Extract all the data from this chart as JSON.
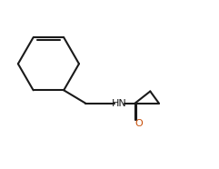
{
  "bg_color": "#ffffff",
  "bond_color": "#1a1a1a",
  "hn_color": "#1a1a1a",
  "o_color": "#c8500a",
  "line_width": 1.5,
  "font_size_hn": 8,
  "font_size_o": 8,
  "figsize": [
    2.41,
    1.86
  ],
  "dpi": 100,
  "xlim": [
    0,
    10
  ],
  "ylim": [
    0,
    7.7
  ]
}
